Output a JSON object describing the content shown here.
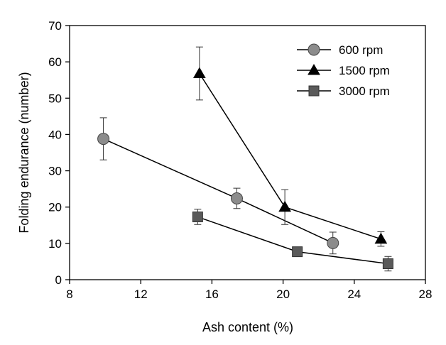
{
  "chart_data": {
    "type": "line",
    "title": "",
    "xlabel": "Ash content (%)",
    "ylabel": "Folding endurance (number)",
    "xlim": [
      8,
      28
    ],
    "ylim": [
      0,
      70
    ],
    "xticks": [
      8,
      12,
      16,
      20,
      24,
      28
    ],
    "yticks": [
      0,
      10,
      20,
      30,
      40,
      50,
      60,
      70
    ],
    "grid": false,
    "legend_position": "top-right",
    "series": [
      {
        "name": "600 rpm",
        "marker": "circle",
        "color": "#8c8c8c",
        "x": [
          9.9,
          17.4,
          22.8
        ],
        "y": [
          38.8,
          22.4,
          10.1
        ],
        "err": [
          5.8,
          2.8,
          3.0
        ]
      },
      {
        "name": "1500 rpm",
        "marker": "triangle",
        "color": "#000000",
        "x": [
          15.3,
          20.1,
          25.5
        ],
        "y": [
          56.8,
          20.0,
          11.2
        ],
        "err": [
          7.3,
          4.8,
          2.0
        ]
      },
      {
        "name": "3000 rpm",
        "marker": "square",
        "color": "#5a5a5a",
        "x": [
          15.2,
          20.8,
          25.9
        ],
        "y": [
          17.3,
          7.7,
          4.4
        ],
        "err": [
          2.1,
          0.6,
          2.0
        ]
      }
    ]
  }
}
